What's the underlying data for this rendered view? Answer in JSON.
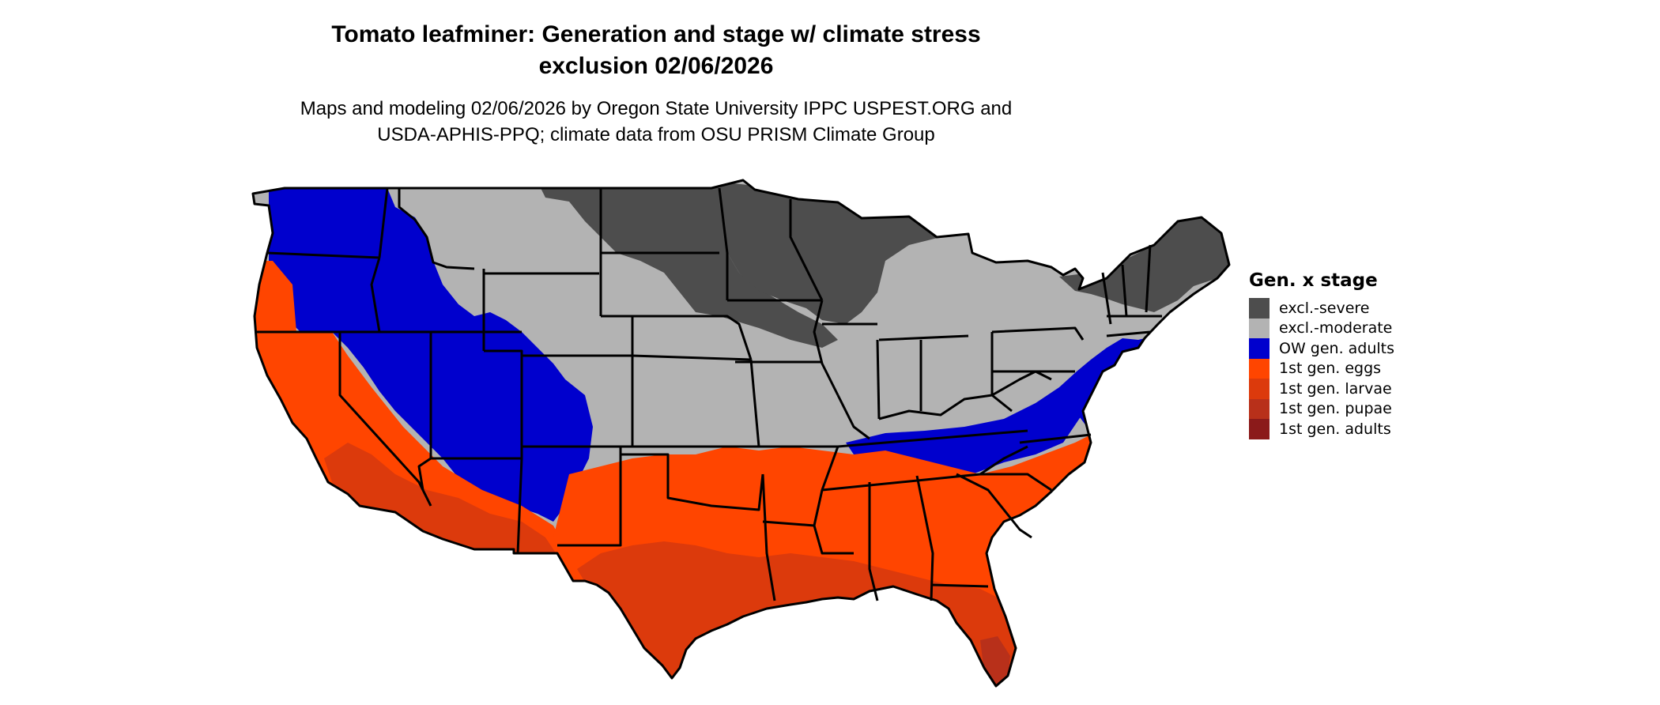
{
  "title": {
    "line1": "Tomato leafminer: Generation and stage w/ climate stress",
    "line2": "exclusion 02/06/2026"
  },
  "subtitle": {
    "line1": "Maps and modeling 02/06/2026 by Oregon State University IPPC USPEST.ORG and",
    "line2": "USDA-APHIS-PPQ; climate data from OSU PRISM Climate Group"
  },
  "legend": {
    "title": "Gen. x stage",
    "items": [
      {
        "label": "excl.-severe",
        "color": "#4d4d4d"
      },
      {
        "label": "excl.-moderate",
        "color": "#b3b3b3"
      },
      {
        "label": "OW gen. adults",
        "color": "#0000cd"
      },
      {
        "label": "1st gen. eggs",
        "color": "#ff4500"
      },
      {
        "label": "1st gen. larvae",
        "color": "#dc3a0c"
      },
      {
        "label": "1st gen. pupae",
        "color": "#b8301a"
      },
      {
        "label": "1st gen. adults",
        "color": "#8b1a1a"
      }
    ]
  },
  "map_layers": [
    {
      "name": "region-excl-severe-north-plains",
      "category": "excl.-severe"
    },
    {
      "name": "region-excl-severe-upper-midwest",
      "category": "excl.-severe"
    },
    {
      "name": "region-excl-severe-northeast",
      "category": "excl.-severe"
    },
    {
      "name": "region-excl-moderate-central",
      "category": "excl.-moderate"
    },
    {
      "name": "region-ow-adults-northwest",
      "category": "OW gen. adults"
    },
    {
      "name": "region-ow-adults-southwest",
      "category": "OW gen. adults"
    },
    {
      "name": "region-ow-adults-appalachia",
      "category": "OW gen. adults"
    },
    {
      "name": "region-ow-adults-midatlantic",
      "category": "OW gen. adults"
    },
    {
      "name": "region-1st-eggs-west-coast",
      "category": "1st gen. eggs"
    },
    {
      "name": "region-1st-eggs-south",
      "category": "1st gen. eggs"
    },
    {
      "name": "region-1st-larvae-desert-southwest",
      "category": "1st gen. larvae"
    },
    {
      "name": "region-1st-larvae-gulf-coast",
      "category": "1st gen. larvae"
    },
    {
      "name": "region-1st-pupae-south-florida",
      "category": "1st gen. pupae"
    },
    {
      "name": "region-1st-adults-florida-keys",
      "category": "1st gen. adults"
    }
  ]
}
